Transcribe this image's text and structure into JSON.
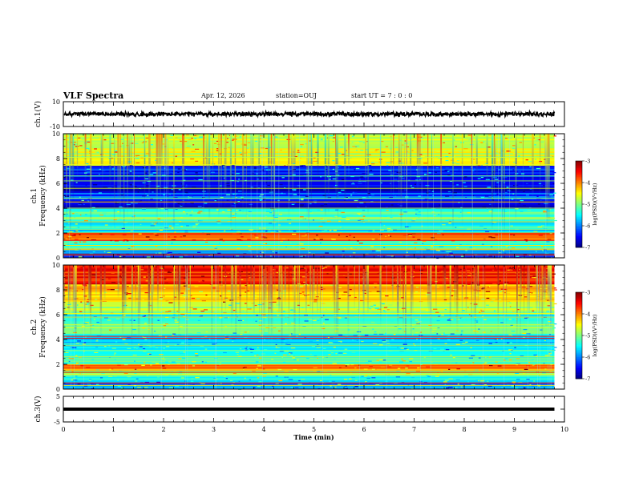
{
  "header": {
    "title": "VLF Spectra",
    "date": "Apr. 12, 2026",
    "station": "station=OUJ",
    "start_ut": "start  UT =   7 : 0  : 0"
  },
  "chart_data": [
    {
      "type": "line",
      "panel": "ch1-waveform",
      "ylabel": "ch.1(V)",
      "ylim": [
        -10,
        10
      ],
      "yticks": [
        "10",
        "-10"
      ],
      "x": [
        0,
        1,
        2,
        3,
        4,
        5,
        6,
        7,
        8,
        9,
        9.8
      ],
      "y": [
        0,
        0,
        0,
        0,
        0,
        0,
        0,
        0,
        0,
        0,
        0
      ],
      "trace_amplitude": 1.5
    },
    {
      "type": "heatmap",
      "panel": "ch1-spectrogram",
      "ylabel": "ch.1",
      "ylabel2": "Frequency (kHz)",
      "ylim": [
        0,
        10
      ],
      "yticks": [
        "0",
        "2",
        "4",
        "6",
        "8",
        "10"
      ],
      "zlim": [
        -7,
        -3
      ],
      "colorbar_label": "log(PSD)(V²/Hz)",
      "colorbar_ticks": [
        "-3",
        "-4",
        "-5",
        "-6",
        "-7"
      ],
      "background_band_kHz": [
        0.0,
        0.6,
        1.2,
        1.4,
        2.0,
        2.5,
        3.0,
        4.0,
        4.6,
        5.2,
        6.0,
        7.5
      ],
      "background_level": [
        -6.1,
        -5.2,
        -5.0,
        -3.7,
        -5.6,
        -5.4,
        -5.2,
        -6.6,
        -6.2,
        -6.6,
        -6.4,
        -4.7
      ]
    },
    {
      "type": "heatmap",
      "panel": "ch2-spectrogram",
      "ylabel": "ch.2",
      "ylabel2": "Frequency (kHz)",
      "ylim": [
        0,
        10
      ],
      "yticks": [
        "0",
        "2",
        "4",
        "6",
        "8",
        "10"
      ],
      "zlim": [
        -7,
        -3
      ],
      "colorbar_label": "log(PSD)(V²/Hz)",
      "colorbar_ticks": [
        "-3",
        "-4",
        "-5",
        "-6",
        "-7"
      ],
      "background_band_kHz": [
        0.0,
        0.6,
        1.2,
        1.6,
        2.0,
        3.0,
        4.0,
        4.5,
        5.5,
        6.0,
        7.0,
        8.5
      ],
      "background_level": [
        -6.0,
        -5.4,
        -5.0,
        -4.0,
        -5.3,
        -5.6,
        -5.6,
        -5.2,
        -5.6,
        -4.8,
        -4.2,
        -3.6
      ]
    },
    {
      "type": "line",
      "panel": "ch3-waveform",
      "ylabel": "ch.3(V)",
      "ylim": [
        -5,
        5
      ],
      "yticks": [
        "5",
        "0",
        "-5"
      ],
      "x": [
        0,
        9.8
      ],
      "y": [
        0,
        0
      ]
    }
  ],
  "xaxis": {
    "label": "Time  (min)",
    "xlim": [
      0,
      10
    ],
    "ticks": [
      "0",
      "1",
      "2",
      "3",
      "4",
      "5",
      "6",
      "7",
      "8",
      "9",
      "10"
    ]
  }
}
